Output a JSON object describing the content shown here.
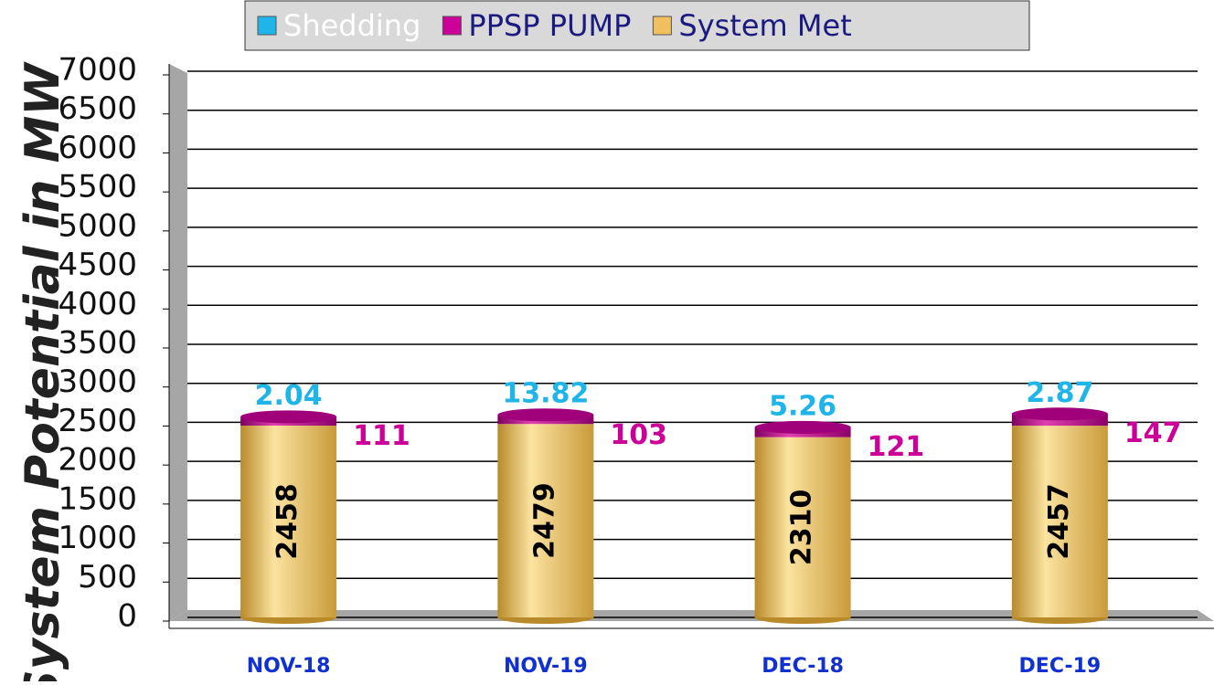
{
  "chart_data": {
    "type": "stacked_bar",
    "y_label": "System Potential in MW",
    "categories": [
      "NOV-18",
      "NOV-19",
      "DEC-18",
      "DEC-19"
    ],
    "series": [
      {
        "name": "System Met",
        "color": "#f0c060",
        "values": [
          2458,
          2479,
          2310,
          2457
        ]
      },
      {
        "name": "PPSP PUMP",
        "color": "#cc0099",
        "values": [
          111,
          103,
          121,
          147
        ]
      },
      {
        "name": "Shedding",
        "color": "#1fb5e8",
        "values": [
          2.04,
          13.82,
          5.26,
          2.87
        ]
      }
    ],
    "legend_order": [
      2,
      1,
      0
    ],
    "ylim": [
      0,
      7000
    ],
    "yticks": [
      0,
      500,
      1000,
      1500,
      2000,
      2500,
      3000,
      3500,
      4000,
      4500,
      5000,
      5500,
      6000,
      6500,
      7000
    ],
    "grid": true,
    "legend": "top"
  }
}
